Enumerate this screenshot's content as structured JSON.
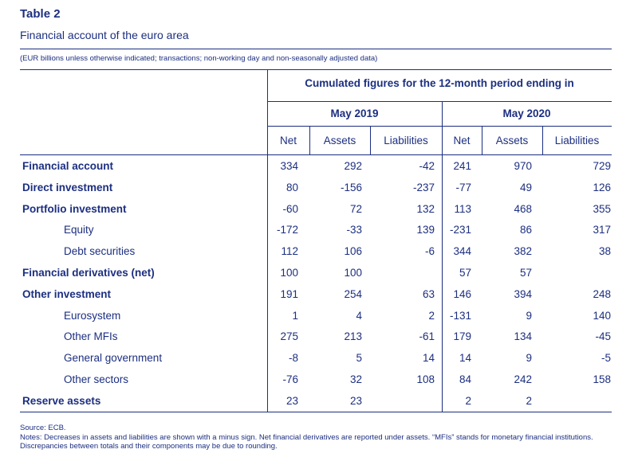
{
  "title": "Table 2",
  "subtitle": "Financial account of the euro area",
  "units_note": "(EUR billions unless otherwise indicated; transactions; non-working day and non-seasonally adjusted data)",
  "header": {
    "period_caption": "Cumulated figures for the 12-month period ending in",
    "periods": [
      "May 2019",
      "May 2020"
    ],
    "columns": [
      "Net",
      "Assets",
      "Liabilities",
      "Net",
      "Assets",
      "Liabilities"
    ]
  },
  "rows": [
    {
      "label": "Financial account",
      "bold": true,
      "indent": false,
      "values": [
        "334",
        "292",
        "-42",
        "241",
        "970",
        "729"
      ]
    },
    {
      "label": "Direct investment",
      "bold": true,
      "indent": false,
      "values": [
        "80",
        "-156",
        "-237",
        "-77",
        "49",
        "126"
      ]
    },
    {
      "label": "Portfolio investment",
      "bold": true,
      "indent": false,
      "values": [
        "-60",
        "72",
        "132",
        "113",
        "468",
        "355"
      ]
    },
    {
      "label": "Equity",
      "bold": false,
      "indent": true,
      "values": [
        "-172",
        "-33",
        "139",
        "-231",
        "86",
        "317"
      ]
    },
    {
      "label": "Debt securities",
      "bold": false,
      "indent": true,
      "values": [
        "112",
        "106",
        "-6",
        "344",
        "382",
        "38"
      ]
    },
    {
      "label": "Financial derivatives (net)",
      "bold": true,
      "indent": false,
      "values": [
        "100",
        "100",
        "",
        "57",
        "57",
        ""
      ]
    },
    {
      "label": "Other investment",
      "bold": true,
      "indent": false,
      "values": [
        "191",
        "254",
        "63",
        "146",
        "394",
        "248"
      ]
    },
    {
      "label": "Eurosystem",
      "bold": false,
      "indent": true,
      "values": [
        "1",
        "4",
        "2",
        "-131",
        "9",
        "140"
      ]
    },
    {
      "label": "Other MFIs",
      "bold": false,
      "indent": true,
      "values": [
        "275",
        "213",
        "-61",
        "179",
        "134",
        "-45"
      ]
    },
    {
      "label": "General government",
      "bold": false,
      "indent": true,
      "values": [
        "-8",
        "5",
        "14",
        "14",
        "9",
        "-5"
      ]
    },
    {
      "label": "Other sectors",
      "bold": false,
      "indent": true,
      "values": [
        "-76",
        "32",
        "108",
        "84",
        "242",
        "158"
      ]
    },
    {
      "label": "Reserve assets",
      "bold": true,
      "indent": false,
      "values": [
        "23",
        "23",
        "",
        "2",
        "2",
        ""
      ]
    }
  ],
  "footnotes": {
    "source": "Source: ECB.",
    "notes": "Notes: Decreases in assets and liabilities are shown with a minus sign. Net financial derivatives are reported under assets. “MFIs” stands for monetary financial institutions.",
    "discrepancies": "Discrepancies between totals and their components may be due to rounding."
  }
}
